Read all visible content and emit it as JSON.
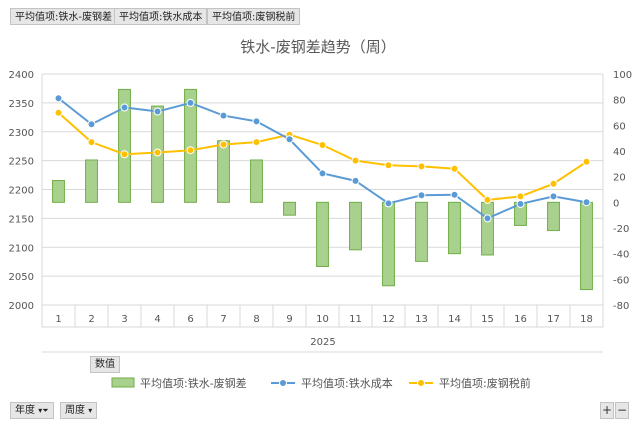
{
  "field_buttons": [
    {
      "label": "平均值项:铁水-废钢差"
    },
    {
      "label": "平均值项:铁水成本"
    },
    {
      "label": "平均值项:废钢税前"
    }
  ],
  "value_button": "数值",
  "bottom": {
    "year_button": "年度",
    "week_button": "周度",
    "plus": "+",
    "minus": "−"
  },
  "colors": {
    "bar_fill": "#a9d18e",
    "bar_stroke": "#70ad47",
    "cost_line": "#5b9bd5",
    "scrap_line": "#ffc000"
  },
  "chart_data": {
    "type": "bar+line",
    "title": "铁水-废钢差趋势（周）",
    "x": [
      "1",
      "2",
      "3",
      "4",
      "6",
      "7",
      "8",
      "9",
      "10",
      "11",
      "12",
      "13",
      "14",
      "15",
      "16",
      "17",
      "18"
    ],
    "x_group_label": "2025",
    "left_axis": {
      "min": 2000,
      "max": 2400,
      "ticks": [
        2000,
        2050,
        2100,
        2150,
        2200,
        2250,
        2300,
        2350,
        2400
      ]
    },
    "right_axis": {
      "min": -80,
      "max": 100,
      "ticks": [
        -80,
        -60,
        -40,
        -20,
        0,
        20,
        40,
        60,
        80,
        100
      ]
    },
    "series": [
      {
        "name": "平均值项:铁水-废钢差",
        "type": "bar",
        "axis": "right",
        "values": [
          17,
          33,
          88,
          75,
          88,
          48,
          33,
          -10,
          -50,
          -37,
          -65,
          -46,
          -40,
          -41,
          -18,
          -22,
          -68
        ]
      },
      {
        "name": "平均值项:铁水成本",
        "type": "line",
        "axis": "left",
        "values": [
          2358,
          2313,
          2342,
          2335,
          2350,
          2328,
          2318,
          2287,
          2228,
          2215,
          2176,
          2190,
          2191,
          2150,
          2175,
          2188,
          2178
        ]
      },
      {
        "name": "平均值项:废钢税前",
        "type": "line",
        "axis": "left",
        "values": [
          2333,
          2282,
          2261,
          2264,
          2268,
          2278,
          2282,
          2295,
          2277,
          2250,
          2242,
          2240,
          2236,
          2182,
          2188,
          2210,
          2248
        ]
      }
    ],
    "legend_position": "bottom"
  }
}
